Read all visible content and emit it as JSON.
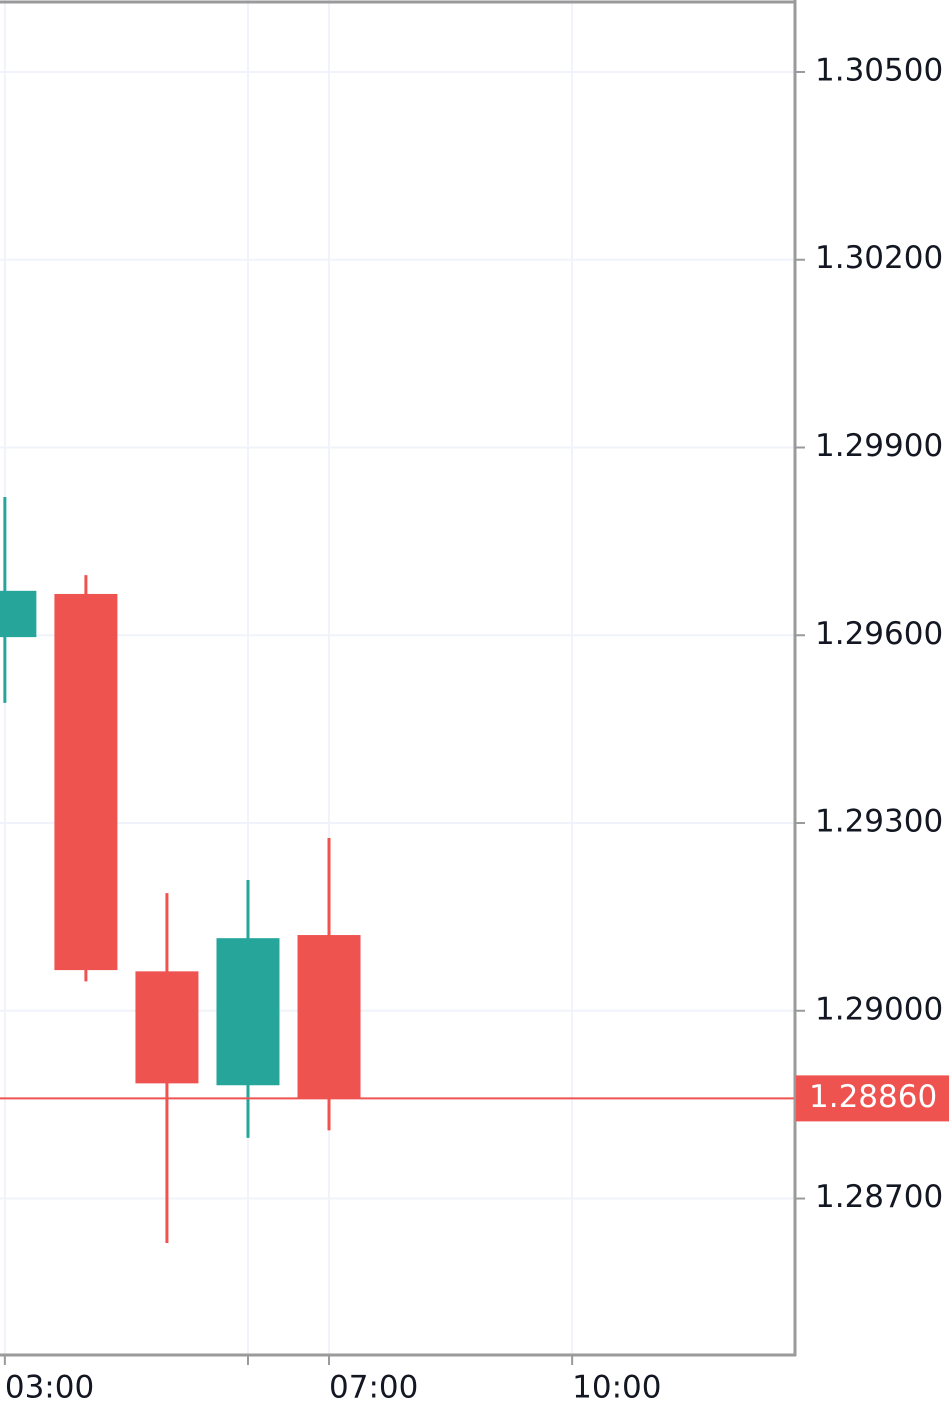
{
  "chart_data": {
    "type": "candlestick",
    "x": [
      3,
      4,
      5,
      6,
      7
    ],
    "open": [
      1.29597,
      1.29666,
      1.29063,
      1.28881,
      1.29121
    ],
    "high": [
      1.29821,
      1.29696,
      1.29188,
      1.29209,
      1.29276
    ],
    "low": [
      1.29492,
      1.29047,
      1.28629,
      1.28797,
      1.28809
    ],
    "close": [
      1.29671,
      1.29065,
      1.28884,
      1.29116,
      1.2886
    ],
    "up_color": "#26a69a",
    "down_color": "#ef5350",
    "xlim": [
      2.94,
      12.75
    ],
    "xticks": [
      {
        "value": 3,
        "label": "03:00"
      },
      {
        "value": 6,
        "label": null
      },
      {
        "value": 7,
        "label": "07:00"
      },
      {
        "value": 10,
        "label": "10:00"
      }
    ],
    "ylim": [
      1.2845,
      1.30615
    ],
    "yticks": [
      {
        "value": 1.305,
        "label": "1.30500"
      },
      {
        "value": 1.302,
        "label": "1.30200"
      },
      {
        "value": 1.299,
        "label": "1.29900"
      },
      {
        "value": 1.296,
        "label": "1.29600"
      },
      {
        "value": 1.293,
        "label": "1.29300"
      },
      {
        "value": 1.29,
        "label": "1.29000"
      },
      {
        "value": 1.287,
        "label": "1.28700"
      }
    ],
    "last_price": {
      "value": 1.2886,
      "label": "1.28860"
    },
    "grid": true
  }
}
